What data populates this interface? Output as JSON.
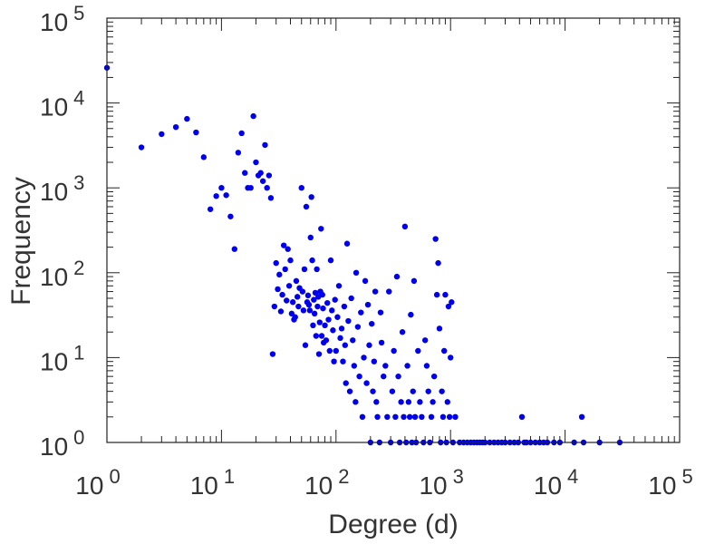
{
  "chart_data": {
    "type": "scatter",
    "title": "",
    "xlabel": "Degree (d)",
    "ylabel": "Frequency",
    "xscale": "log",
    "yscale": "log",
    "xlim": [
      1,
      100000
    ],
    "ylim": [
      1,
      100000
    ],
    "x_tick_labels": [
      {
        "base": "10",
        "exp": "0"
      },
      {
        "base": "10",
        "exp": "1"
      },
      {
        "base": "10",
        "exp": "2"
      },
      {
        "base": "10",
        "exp": "3"
      },
      {
        "base": "10",
        "exp": "4"
      },
      {
        "base": "10",
        "exp": "5"
      }
    ],
    "y_tick_labels": [
      {
        "base": "10",
        "exp": "0"
      },
      {
        "base": "10",
        "exp": "1"
      },
      {
        "base": "10",
        "exp": "2"
      },
      {
        "base": "10",
        "exp": "3"
      },
      {
        "base": "10",
        "exp": "4"
      },
      {
        "base": "10",
        "exp": "5"
      }
    ],
    "grid": false,
    "marker_color": "#0000ee",
    "points": [
      [
        1,
        26000
      ],
      [
        2,
        3000
      ],
      [
        3,
        4300
      ],
      [
        4,
        5200
      ],
      [
        5,
        6500
      ],
      [
        6,
        4500
      ],
      [
        7,
        2300
      ],
      [
        8,
        560
      ],
      [
        9,
        800
      ],
      [
        10,
        1000
      ],
      [
        11,
        820
      ],
      [
        12,
        460
      ],
      [
        13,
        190
      ],
      [
        14,
        2600
      ],
      [
        15,
        4400
      ],
      [
        16,
        1500
      ],
      [
        17,
        1000
      ],
      [
        18,
        1000
      ],
      [
        19,
        7000
      ],
      [
        20,
        2000
      ],
      [
        21,
        1400
      ],
      [
        22,
        1500
      ],
      [
        23,
        1200
      ],
      [
        24,
        3200
      ],
      [
        25,
        1000
      ],
      [
        26,
        1400
      ],
      [
        27,
        760
      ],
      [
        28,
        11
      ],
      [
        29,
        40
      ],
      [
        30,
        130
      ],
      [
        31,
        64
      ],
      [
        32,
        95
      ],
      [
        33,
        35
      ],
      [
        34,
        55
      ],
      [
        35,
        210
      ],
      [
        36,
        110
      ],
      [
        37,
        47
      ],
      [
        38,
        190
      ],
      [
        39,
        70
      ],
      [
        40,
        140
      ],
      [
        41,
        33
      ],
      [
        42,
        45
      ],
      [
        43,
        28
      ],
      [
        44,
        30
      ],
      [
        45,
        80
      ],
      [
        46,
        52
      ],
      [
        47,
        40
      ],
      [
        48,
        66
      ],
      [
        50,
        1000
      ],
      [
        51,
        60
      ],
      [
        52,
        36
      ],
      [
        53,
        110
      ],
      [
        54,
        14
      ],
      [
        55,
        600
      ],
      [
        56,
        45
      ],
      [
        57,
        54
      ],
      [
        58,
        42
      ],
      [
        59,
        36
      ],
      [
        60,
        260
      ],
      [
        61,
        780
      ],
      [
        62,
        140
      ],
      [
        63,
        24
      ],
      [
        64,
        48
      ],
      [
        65,
        33
      ],
      [
        66,
        58
      ],
      [
        67,
        18
      ],
      [
        68,
        110
      ],
      [
        69,
        40
      ],
      [
        70,
        52
      ],
      [
        71,
        11
      ],
      [
        72,
        26
      ],
      [
        73,
        60
      ],
      [
        74,
        330
      ],
      [
        75,
        18
      ],
      [
        76,
        55
      ],
      [
        77,
        38
      ],
      [
        78,
        15
      ],
      [
        80,
        24
      ],
      [
        82,
        16
      ],
      [
        84,
        44
      ],
      [
        86,
        28
      ],
      [
        88,
        12
      ],
      [
        90,
        140
      ],
      [
        92,
        36
      ],
      [
        94,
        21
      ],
      [
        96,
        9
      ],
      [
        98,
        48
      ],
      [
        100,
        12
      ],
      [
        103,
        30
      ],
      [
        106,
        70
      ],
      [
        109,
        17
      ],
      [
        112,
        22
      ],
      [
        115,
        9
      ],
      [
        118,
        40
      ],
      [
        120,
        14
      ],
      [
        122,
        5
      ],
      [
        125,
        220
      ],
      [
        128,
        27
      ],
      [
        132,
        4
      ],
      [
        136,
        50
      ],
      [
        140,
        16
      ],
      [
        144,
        8
      ],
      [
        148,
        3
      ],
      [
        150,
        100
      ],
      [
        155,
        23
      ],
      [
        160,
        6
      ],
      [
        165,
        34
      ],
      [
        170,
        2
      ],
      [
        175,
        10
      ],
      [
        180,
        80
      ],
      [
        185,
        5
      ],
      [
        190,
        42
      ],
      [
        195,
        14
      ],
      [
        200,
        1
      ],
      [
        205,
        25
      ],
      [
        210,
        4
      ],
      [
        215,
        9
      ],
      [
        220,
        60
      ],
      [
        225,
        3
      ],
      [
        230,
        2
      ],
      [
        240,
        1
      ],
      [
        245,
        34
      ],
      [
        250,
        15
      ],
      [
        260,
        6
      ],
      [
        270,
        8
      ],
      [
        280,
        2
      ],
      [
        290,
        60
      ],
      [
        300,
        1
      ],
      [
        310,
        4
      ],
      [
        320,
        12
      ],
      [
        330,
        2
      ],
      [
        340,
        90
      ],
      [
        350,
        6
      ],
      [
        360,
        1
      ],
      [
        370,
        3
      ],
      [
        380,
        20
      ],
      [
        390,
        2
      ],
      [
        400,
        350
      ],
      [
        410,
        1
      ],
      [
        420,
        8
      ],
      [
        430,
        3
      ],
      [
        440,
        2
      ],
      [
        450,
        32
      ],
      [
        460,
        1
      ],
      [
        470,
        4
      ],
      [
        480,
        80
      ],
      [
        490,
        2
      ],
      [
        500,
        1
      ],
      [
        520,
        12
      ],
      [
        540,
        3
      ],
      [
        560,
        2
      ],
      [
        580,
        1
      ],
      [
        600,
        16
      ],
      [
        620,
        8
      ],
      [
        640,
        4
      ],
      [
        660,
        1
      ],
      [
        680,
        2
      ],
      [
        700,
        3
      ],
      [
        720,
        6
      ],
      [
        740,
        250
      ],
      [
        760,
        55
      ],
      [
        780,
        130
      ],
      [
        800,
        22
      ],
      [
        820,
        1
      ],
      [
        840,
        4
      ],
      [
        860,
        2
      ],
      [
        880,
        12
      ],
      [
        900,
        55
      ],
      [
        920,
        1
      ],
      [
        940,
        3
      ],
      [
        960,
        40
      ],
      [
        980,
        2
      ],
      [
        1000,
        10
      ],
      [
        1020,
        45
      ],
      [
        1050,
        1
      ],
      [
        1100,
        2
      ],
      [
        1200,
        1
      ],
      [
        1300,
        1
      ],
      [
        1400,
        1
      ],
      [
        1500,
        1
      ],
      [
        1600,
        1
      ],
      [
        1700,
        1
      ],
      [
        1800,
        1
      ],
      [
        1900,
        1
      ],
      [
        2000,
        1
      ],
      [
        2200,
        1
      ],
      [
        2400,
        1
      ],
      [
        2600,
        1
      ],
      [
        2800,
        1
      ],
      [
        3000,
        1
      ],
      [
        3300,
        1
      ],
      [
        3600,
        1
      ],
      [
        3900,
        1
      ],
      [
        4200,
        2
      ],
      [
        4400,
        1
      ],
      [
        4600,
        1
      ],
      [
        5000,
        1
      ],
      [
        5500,
        1
      ],
      [
        6000,
        1
      ],
      [
        6500,
        1
      ],
      [
        7000,
        1
      ],
      [
        8000,
        1
      ],
      [
        9000,
        1
      ],
      [
        12000,
        1
      ],
      [
        14000,
        2
      ],
      [
        14500,
        1
      ],
      [
        20000,
        1
      ],
      [
        30000,
        1
      ]
    ]
  }
}
